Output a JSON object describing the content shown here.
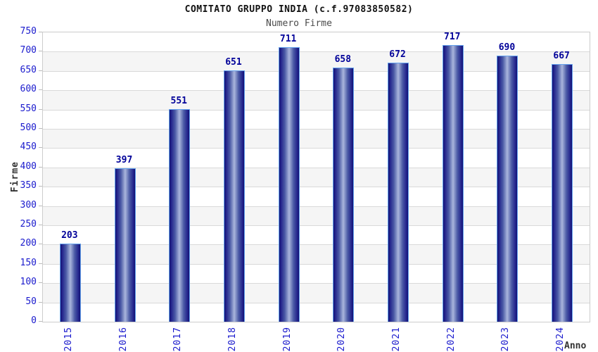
{
  "header": {
    "title": "COMITATO GRUPPO INDIA (c.f.97083850582)",
    "subtitle": "Numero Firme"
  },
  "chart_data": {
    "type": "bar",
    "title": "COMITATO GRUPPO INDIA (c.f.97083850582)",
    "subtitle": "Numero Firme",
    "categories": [
      "2015",
      "2016",
      "2017",
      "2018",
      "2019",
      "2020",
      "2021",
      "2022",
      "2023",
      "2024"
    ],
    "values": [
      203,
      397,
      551,
      651,
      711,
      658,
      672,
      717,
      690,
      667
    ],
    "xlabel": "Anno",
    "ylabel": "Firme",
    "ylim": [
      0,
      750
    ],
    "ytick_step": 50,
    "grid": true,
    "legend": "none",
    "colors": {
      "tick_label_blue": "#1a1acd",
      "value_label_navy": "#000099",
      "bar_edge_dark": "#131370",
      "bar_center_light": "#aab6dc",
      "bar_border": "#64a2ee",
      "band_gray": "#f5f5f5",
      "gridline": "#d9d9d9",
      "plot_border": "#cccccc",
      "title_color": "#111111",
      "subtitle_color": "#4a4a4a",
      "axis_title_color": "#333333"
    }
  }
}
